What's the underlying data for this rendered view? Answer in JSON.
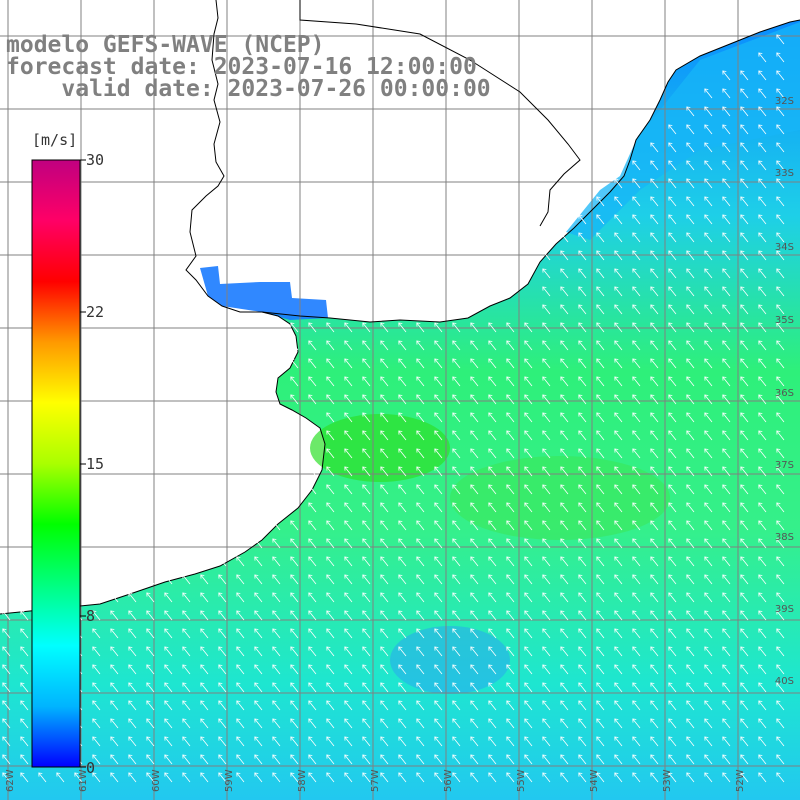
{
  "title": {
    "line1": "modelo GEFS-WAVE (NCEP)",
    "line2": "forecast date: 2023-07-16 12:00:00",
    "line3": "    valid date: 2023-07-26 00:00:00"
  },
  "colorbar": {
    "unit": "[m/s]",
    "min": 0,
    "max": 30,
    "ticks": [
      "30",
      "22",
      "15",
      "8",
      "0"
    ],
    "tick_values": [
      30,
      22,
      15,
      8,
      0
    ],
    "colors": [
      "#0000ff",
      "#00b4ff",
      "#00ffff",
      "#00ff80",
      "#00ff00",
      "#aaff00",
      "#ffff00",
      "#ff9900",
      "#ff0000",
      "#ff0066",
      "#c00080"
    ]
  },
  "lat_labels": [
    "32S",
    "33S",
    "34S",
    "35S",
    "36S",
    "37S",
    "38S",
    "39S",
    "40S"
  ],
  "lon_labels": [
    "62W",
    "61W",
    "60W",
    "59W",
    "58W",
    "57W",
    "56W",
    "55W",
    "54W",
    "53W",
    "52W"
  ],
  "colors": {
    "land": "#ffffff",
    "coast": "#000000",
    "grid": "#808080",
    "arrow": "#ffffff"
  }
}
